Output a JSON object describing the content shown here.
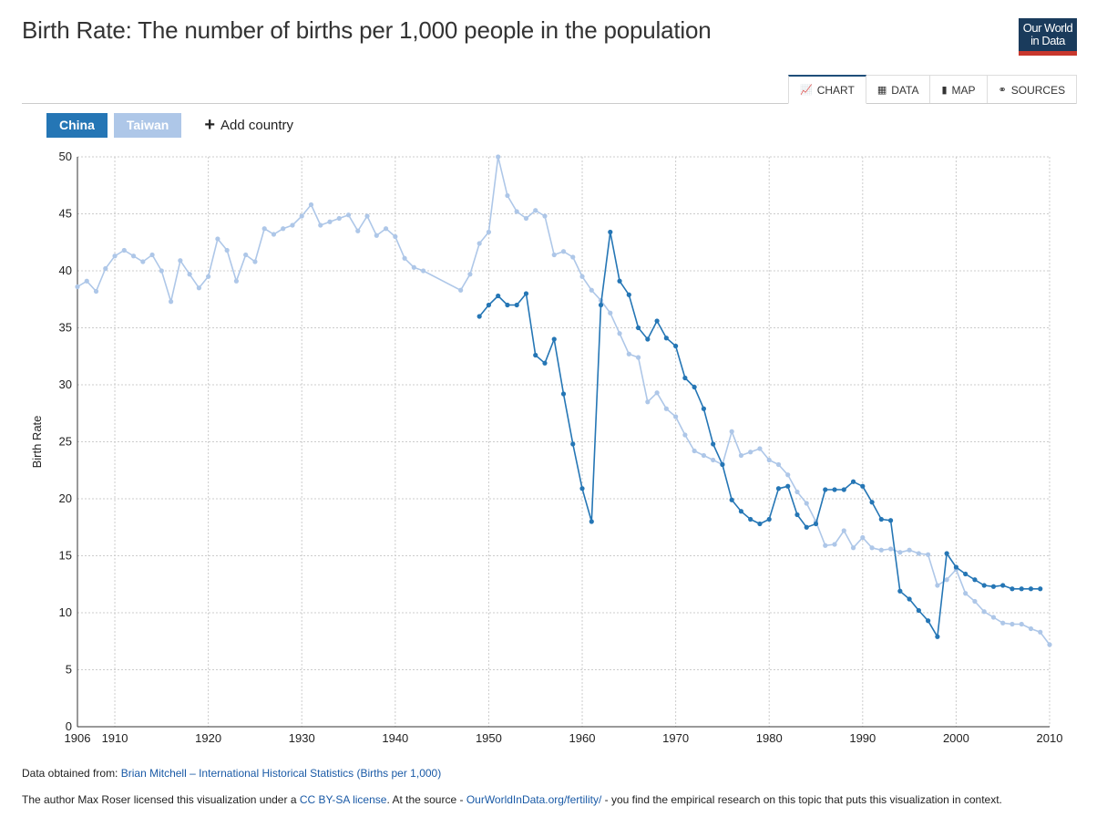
{
  "header": {
    "title": "Birth Rate: The number of births per 1,000 people in the population",
    "logo_line1": "Our World",
    "logo_line2": "in Data"
  },
  "tabs": [
    {
      "label": "CHART",
      "icon": "line-chart-icon",
      "active": true
    },
    {
      "label": "DATA",
      "icon": "table-icon",
      "active": false
    },
    {
      "label": "MAP",
      "icon": "map-icon",
      "active": false
    },
    {
      "label": "SOURCES",
      "icon": "link-icon",
      "active": false
    }
  ],
  "legend": {
    "add_label": "Add country"
  },
  "colors": {
    "china": "#2576b5",
    "taiwan": "#aec7e8",
    "grid": "#cccccc",
    "link": "#1a5aa6"
  },
  "chart_data": {
    "type": "line",
    "title": "Birth Rate: The number of births per 1,000 people in the population",
    "xlabel": "",
    "ylabel": "Birth Rate",
    "xlim": [
      1906,
      2010
    ],
    "ylim": [
      0,
      50
    ],
    "xticks": [
      1906,
      1910,
      1920,
      1930,
      1940,
      1950,
      1960,
      1970,
      1980,
      1990,
      2000,
      2010
    ],
    "yticks": [
      0,
      5,
      10,
      15,
      20,
      25,
      30,
      35,
      40,
      45,
      50
    ],
    "grid": true,
    "series": [
      {
        "name": "Taiwan",
        "color": "#aec7e8",
        "points": [
          [
            1906,
            38.6
          ],
          [
            1907,
            39.1
          ],
          [
            1908,
            38.2
          ],
          [
            1909,
            40.2
          ],
          [
            1910,
            41.3
          ],
          [
            1911,
            41.8
          ],
          [
            1912,
            41.3
          ],
          [
            1913,
            40.8
          ],
          [
            1914,
            41.4
          ],
          [
            1915,
            40.0
          ],
          [
            1916,
            37.3
          ],
          [
            1917,
            40.9
          ],
          [
            1918,
            39.7
          ],
          [
            1919,
            38.5
          ],
          [
            1920,
            39.5
          ],
          [
            1921,
            42.8
          ],
          [
            1922,
            41.8
          ],
          [
            1923,
            39.1
          ],
          [
            1924,
            41.4
          ],
          [
            1925,
            40.8
          ],
          [
            1926,
            43.7
          ],
          [
            1927,
            43.2
          ],
          [
            1928,
            43.7
          ],
          [
            1929,
            44.0
          ],
          [
            1930,
            44.8
          ],
          [
            1931,
            45.8
          ],
          [
            1932,
            44.0
          ],
          [
            1933,
            44.3
          ],
          [
            1934,
            44.6
          ],
          [
            1935,
            44.9
          ],
          [
            1936,
            43.5
          ],
          [
            1937,
            44.8
          ],
          [
            1938,
            43.1
          ],
          [
            1939,
            43.7
          ],
          [
            1940,
            43.0
          ],
          [
            1941,
            41.1
          ],
          [
            1942,
            40.3
          ],
          [
            1943,
            40.0
          ],
          [
            1947,
            38.3
          ],
          [
            1948,
            39.7
          ],
          [
            1949,
            42.4
          ],
          [
            1950,
            43.4
          ],
          [
            1951,
            50.0
          ],
          [
            1952,
            46.6
          ],
          [
            1953,
            45.2
          ],
          [
            1954,
            44.6
          ],
          [
            1955,
            45.3
          ],
          [
            1956,
            44.8
          ],
          [
            1957,
            41.4
          ],
          [
            1958,
            41.7
          ],
          [
            1959,
            41.2
          ],
          [
            1960,
            39.5
          ],
          [
            1961,
            38.3
          ],
          [
            1962,
            37.4
          ],
          [
            1963,
            36.3
          ],
          [
            1964,
            34.5
          ],
          [
            1965,
            32.7
          ],
          [
            1966,
            32.4
          ],
          [
            1967,
            28.5
          ],
          [
            1968,
            29.3
          ],
          [
            1969,
            27.9
          ],
          [
            1970,
            27.2
          ],
          [
            1971,
            25.6
          ],
          [
            1972,
            24.2
          ],
          [
            1973,
            23.8
          ],
          [
            1974,
            23.4
          ],
          [
            1975,
            23.0
          ],
          [
            1976,
            25.9
          ],
          [
            1977,
            23.8
          ],
          [
            1978,
            24.1
          ],
          [
            1979,
            24.4
          ],
          [
            1980,
            23.4
          ],
          [
            1981,
            23.0
          ],
          [
            1982,
            22.1
          ],
          [
            1983,
            20.6
          ],
          [
            1984,
            19.6
          ],
          [
            1985,
            18.0
          ],
          [
            1986,
            15.9
          ],
          [
            1987,
            16.0
          ],
          [
            1988,
            17.2
          ],
          [
            1989,
            15.7
          ],
          [
            1990,
            16.6
          ],
          [
            1991,
            15.7
          ],
          [
            1992,
            15.5
          ],
          [
            1993,
            15.6
          ],
          [
            1994,
            15.3
          ],
          [
            1995,
            15.5
          ],
          [
            1996,
            15.2
          ],
          [
            1997,
            15.1
          ],
          [
            1998,
            12.4
          ],
          [
            1999,
            12.9
          ],
          [
            2000,
            13.8
          ],
          [
            2001,
            11.7
          ],
          [
            2002,
            11.0
          ],
          [
            2003,
            10.1
          ],
          [
            2004,
            9.6
          ],
          [
            2005,
            9.1
          ],
          [
            2006,
            9.0
          ],
          [
            2007,
            9.0
          ],
          [
            2008,
            8.6
          ],
          [
            2009,
            8.3
          ],
          [
            2010,
            7.2
          ]
        ]
      },
      {
        "name": "China",
        "color": "#2576b5",
        "points": [
          [
            1949,
            36.0
          ],
          [
            1950,
            37.0
          ],
          [
            1951,
            37.8
          ],
          [
            1952,
            37.0
          ],
          [
            1953,
            37.0
          ],
          [
            1954,
            38.0
          ],
          [
            1955,
            32.6
          ],
          [
            1956,
            31.9
          ],
          [
            1957,
            34.0
          ],
          [
            1958,
            29.2
          ],
          [
            1959,
            24.8
          ],
          [
            1960,
            20.9
          ],
          [
            1961,
            18.0
          ],
          [
            1962,
            37.0
          ],
          [
            1963,
            43.4
          ],
          [
            1964,
            39.1
          ],
          [
            1965,
            37.9
          ],
          [
            1966,
            35.0
          ],
          [
            1967,
            34.0
          ],
          [
            1968,
            35.6
          ],
          [
            1969,
            34.1
          ],
          [
            1970,
            33.4
          ],
          [
            1971,
            30.6
          ],
          [
            1972,
            29.8
          ],
          [
            1973,
            27.9
          ],
          [
            1974,
            24.8
          ],
          [
            1975,
            23.0
          ],
          [
            1976,
            19.9
          ],
          [
            1977,
            18.9
          ],
          [
            1978,
            18.2
          ],
          [
            1979,
            17.8
          ],
          [
            1980,
            18.2
          ],
          [
            1981,
            20.9
          ],
          [
            1982,
            21.1
          ],
          [
            1983,
            18.6
          ],
          [
            1984,
            17.5
          ],
          [
            1985,
            17.8
          ],
          [
            1986,
            20.8
          ],
          [
            1987,
            20.8
          ],
          [
            1988,
            20.8
          ],
          [
            1989,
            21.5
          ],
          [
            1990,
            21.1
          ],
          [
            1991,
            19.7
          ],
          [
            1992,
            18.2
          ],
          [
            1993,
            18.1
          ],
          [
            1994,
            11.9
          ],
          [
            1995,
            11.2
          ],
          [
            1996,
            10.2
          ],
          [
            1997,
            9.3
          ],
          [
            1998,
            7.9
          ],
          [
            1999,
            15.2
          ],
          [
            2000,
            14.0
          ],
          [
            2001,
            13.4
          ],
          [
            2002,
            12.9
          ],
          [
            2003,
            12.4
          ],
          [
            2004,
            12.3
          ],
          [
            2005,
            12.4
          ],
          [
            2006,
            12.1
          ],
          [
            2007,
            12.1
          ],
          [
            2008,
            12.1
          ],
          [
            2009,
            12.1
          ]
        ]
      }
    ]
  },
  "footer": {
    "source_prefix": "Data obtained from: ",
    "source_link": "Brian Mitchell – International Historical Statistics (Births per 1,000)",
    "license_prefix": "The author Max Roser licensed this visualization under a ",
    "license_link": "CC BY-SA license",
    "license_mid": ". At the source - ",
    "site_link": "OurWorldInData.org/fertility/",
    "license_suffix": " - you find the empirical research on this topic that puts this visualization in context."
  }
}
